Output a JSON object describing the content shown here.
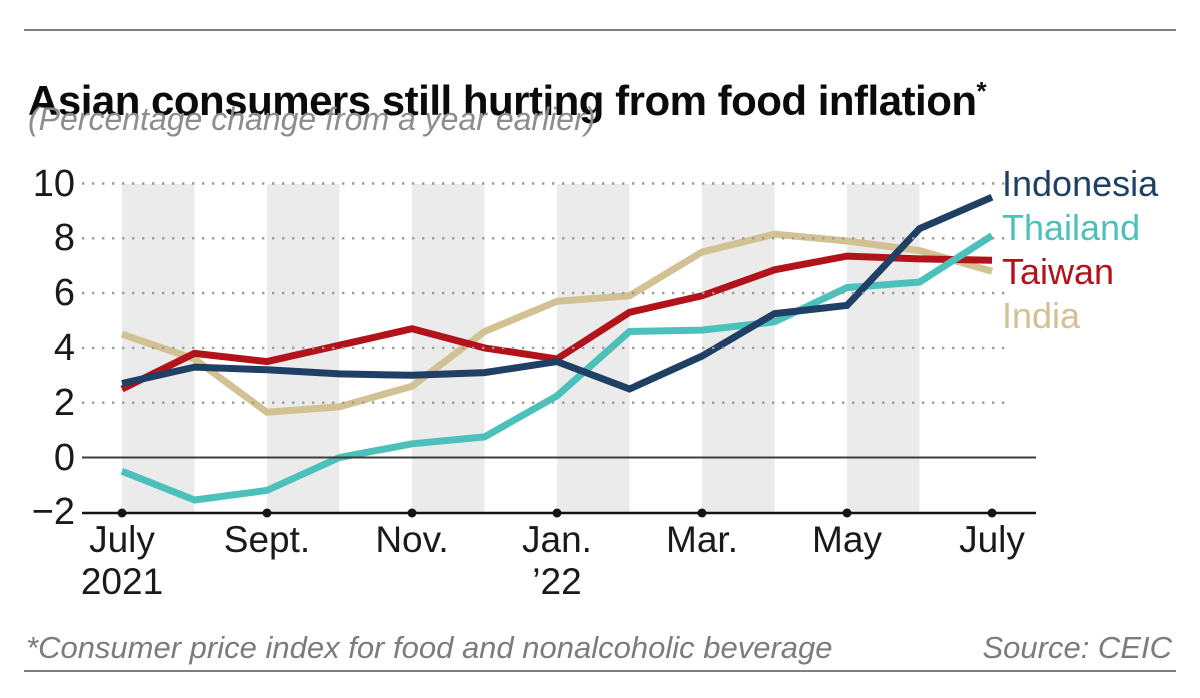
{
  "header": {
    "title": "Asian consumers still hurting from food inflation",
    "asterisk": "*",
    "subtitle": "(Percentage change from a year earlier)"
  },
  "footer": {
    "note": "*Consumer price index for food and nonalcoholic beverage",
    "source": "Source: CEIC"
  },
  "chart_data": {
    "type": "line",
    "title": "Asian consumers still hurting from food inflation*",
    "subtitle": "(Percentage change from a year earlier)",
    "ylabel": "Percentage change from a year earlier",
    "xlabel": "",
    "x": [
      "July 2021",
      "Aug. 2021",
      "Sept. 2021",
      "Oct. 2021",
      "Nov. 2021",
      "Dec. 2021",
      "Jan. 2022",
      "Feb. 2022",
      "Mar. 2022",
      "Apr. 2022",
      "May 2022",
      "June 2022",
      "July 2022"
    ],
    "series": [
      {
        "name": "Indonesia",
        "color": "#1f4064",
        "values": [
          2.7,
          3.3,
          3.2,
          3.05,
          3.0,
          3.1,
          3.5,
          2.5,
          3.7,
          5.25,
          5.55,
          8.35,
          9.5
        ]
      },
      {
        "name": "Thailand",
        "color": "#4cc1bb",
        "values": [
          -0.5,
          -1.55,
          -1.2,
          0.0,
          0.5,
          0.75,
          2.25,
          4.6,
          4.65,
          4.95,
          6.2,
          6.4,
          8.1
        ]
      },
      {
        "name": "Taiwan",
        "color": "#b2121a",
        "values": [
          2.5,
          3.8,
          3.5,
          4.1,
          4.7,
          4.0,
          3.6,
          5.3,
          5.9,
          6.85,
          7.35,
          7.25,
          7.2
        ]
      },
      {
        "name": "India",
        "color": "#d2c192",
        "values": [
          4.5,
          3.6,
          1.65,
          1.85,
          2.6,
          4.6,
          5.7,
          5.9,
          7.5,
          8.15,
          7.9,
          7.55,
          6.8
        ]
      }
    ],
    "y_ticks": [
      10,
      8,
      6,
      4,
      2,
      0,
      -2
    ],
    "y_tick_labels": [
      "10",
      "8",
      "6",
      "4",
      "2",
      "0",
      "−2"
    ],
    "ylim": [
      -2,
      10
    ],
    "x_tick_labels": [
      {
        "index": 0,
        "line1": "July",
        "line2": "2021"
      },
      {
        "index": 2,
        "line1": "Sept."
      },
      {
        "index": 4,
        "line1": "Nov."
      },
      {
        "index": 6,
        "line1": "Jan.",
        "line2": "’22"
      },
      {
        "index": 8,
        "line1": "Mar."
      },
      {
        "index": 10,
        "line1": "May"
      },
      {
        "index": 12,
        "line1": "July"
      }
    ],
    "grid": "dotted horizontal gridlines at 2,4,6,8,10; solid line at 0",
    "legend_position": "right, stacked beside line ends",
    "shaded_bands_month_pairs": [
      [
        0,
        1
      ],
      [
        2,
        3
      ],
      [
        4,
        5
      ],
      [
        6,
        7
      ],
      [
        8,
        9
      ],
      [
        10,
        11
      ]
    ],
    "band_color": "#ebebeb"
  },
  "colors": {
    "background": "#ffffff",
    "rule": "#7e7e7e",
    "grid_dots": "#9c9c9c",
    "zero_line": "#3c3c3c",
    "axis": "#141414",
    "tick_text": "#1a1a1a"
  }
}
